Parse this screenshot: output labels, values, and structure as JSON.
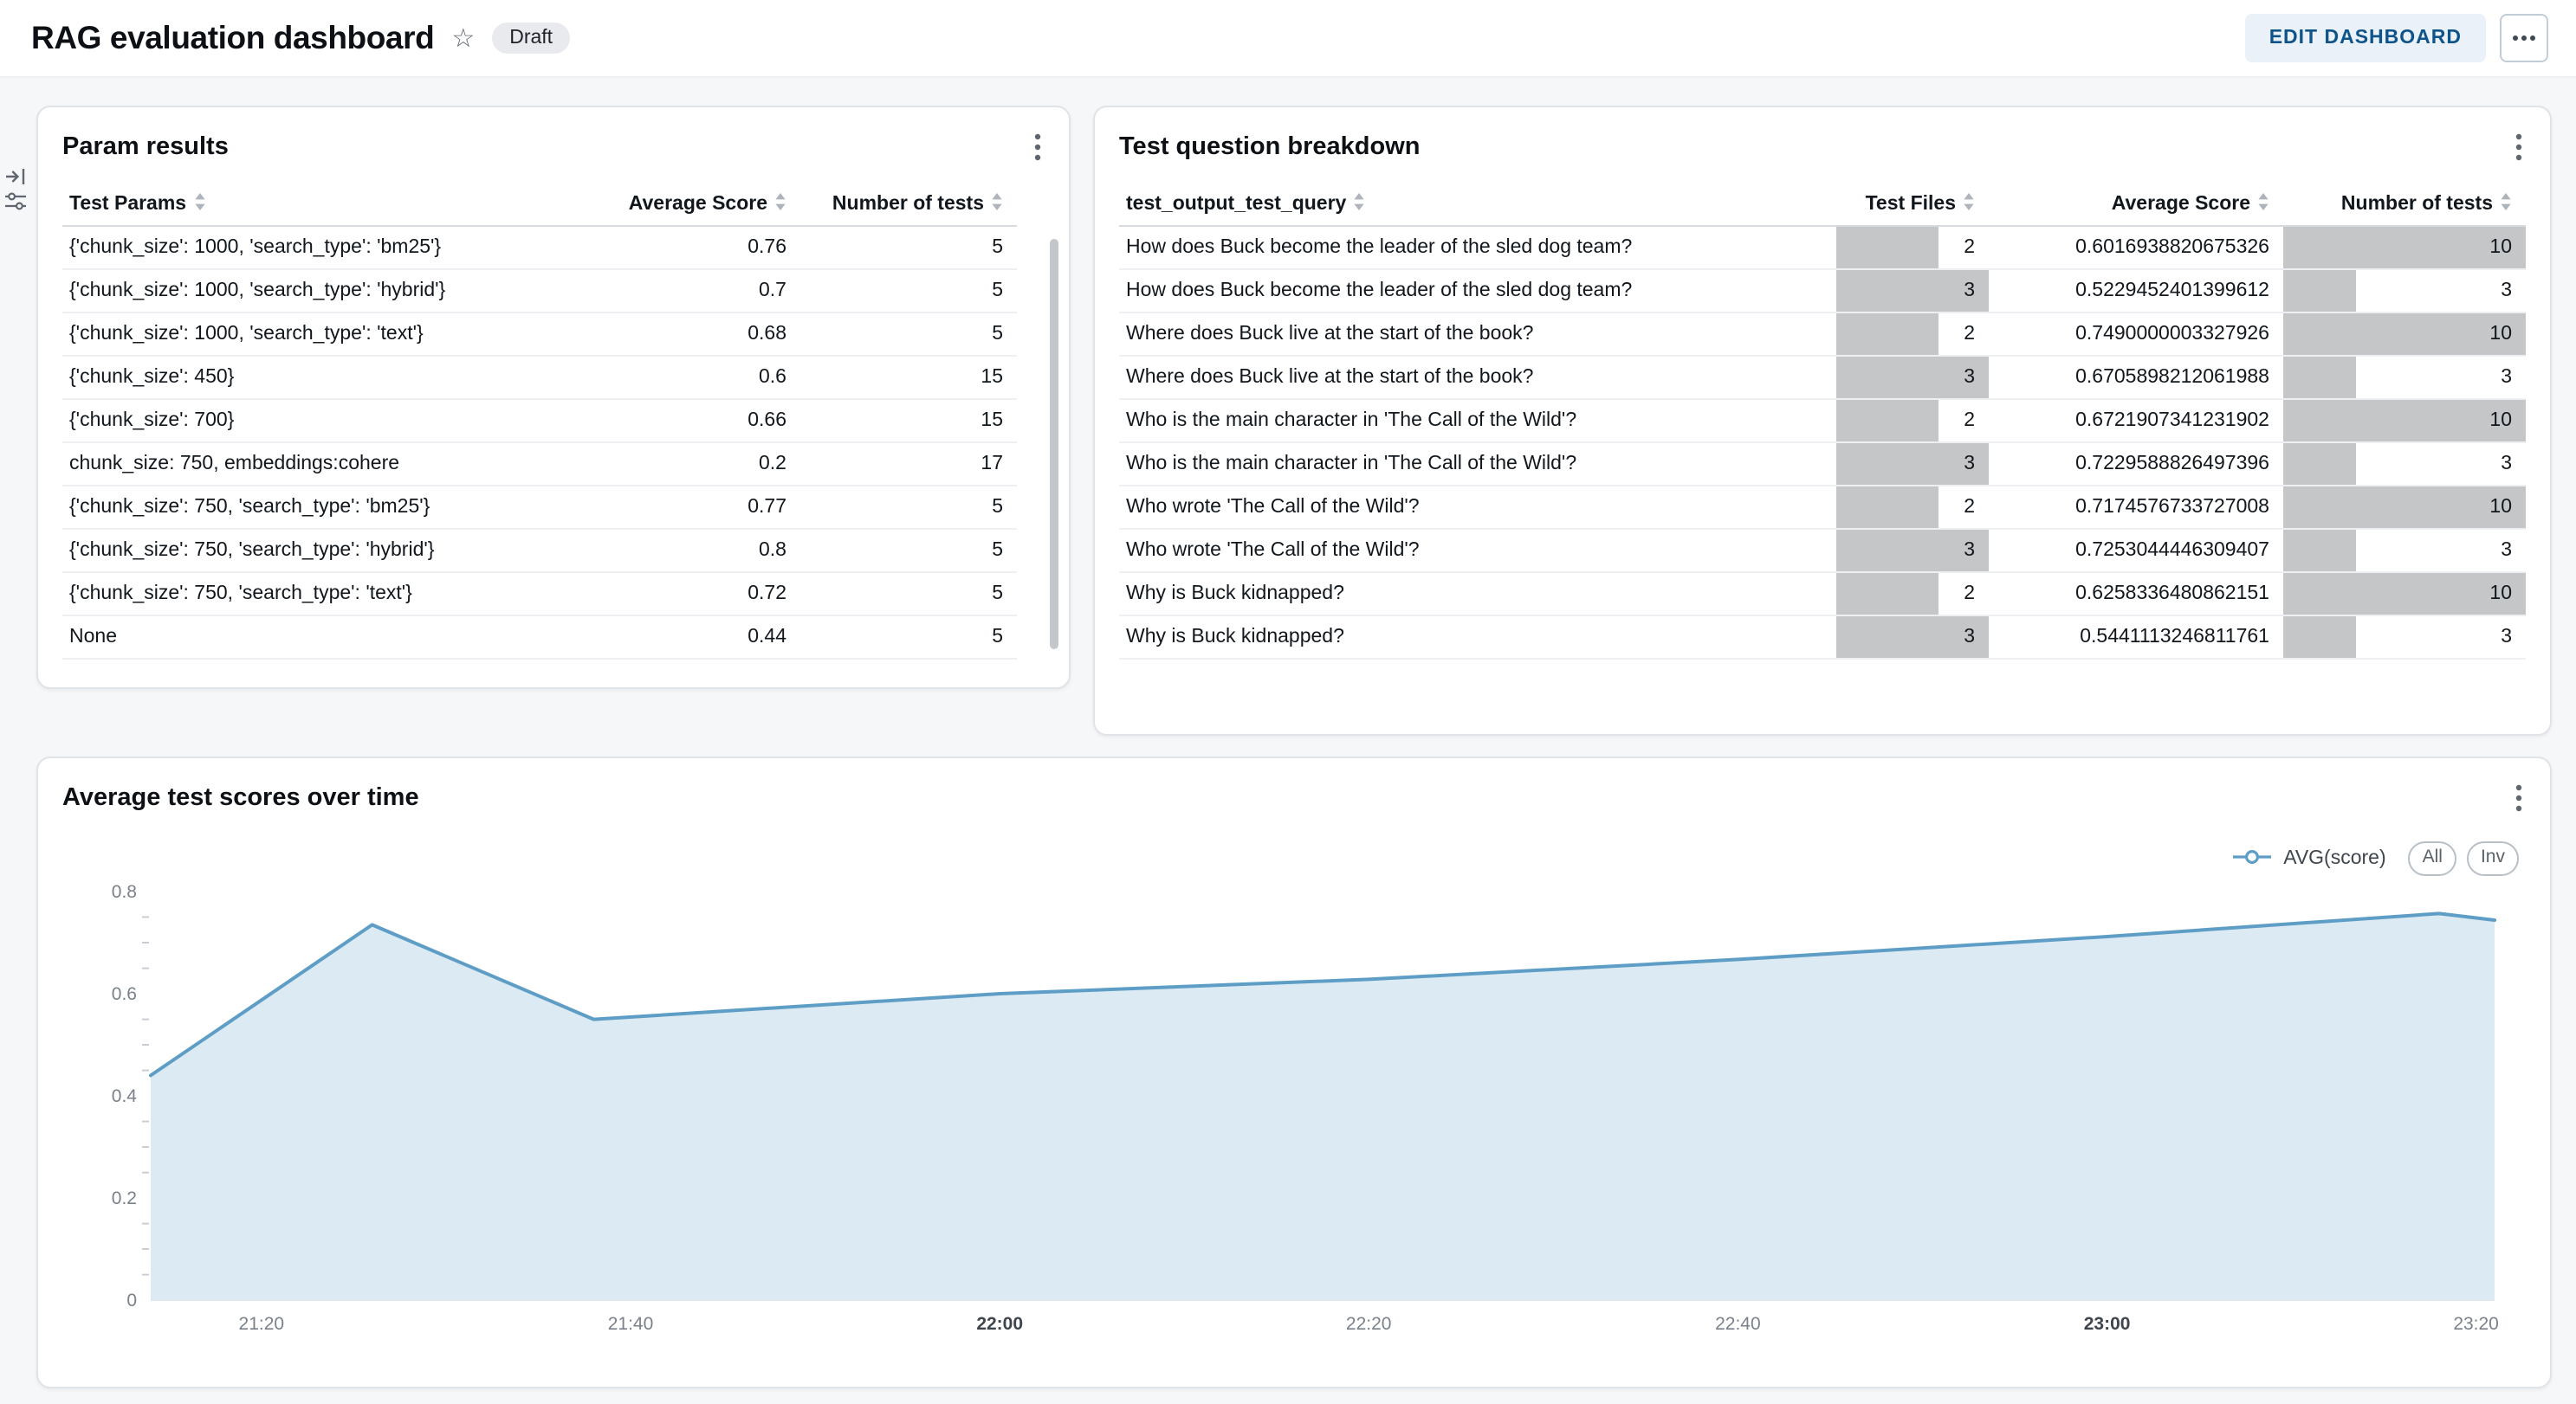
{
  "header": {
    "title": "RAG evaluation dashboard",
    "status_badge": "Draft",
    "edit_button_label": "EDIT DASHBOARD"
  },
  "param_results": {
    "title": "Param results",
    "columns": [
      {
        "key": "params",
        "label": "Test Params",
        "align": "left"
      },
      {
        "key": "avg_score",
        "label": "Average Score",
        "align": "right"
      },
      {
        "key": "num_tests",
        "label": "Number of tests",
        "align": "right"
      }
    ],
    "rows": [
      {
        "params": "{'chunk_size': 1000, 'search_type': 'bm25'}",
        "avg_score": "0.76",
        "num_tests": "5"
      },
      {
        "params": "{'chunk_size': 1000, 'search_type': 'hybrid'}",
        "avg_score": "0.7",
        "num_tests": "5"
      },
      {
        "params": "{'chunk_size': 1000, 'search_type': 'text'}",
        "avg_score": "0.68",
        "num_tests": "5"
      },
      {
        "params": "{'chunk_size': 450}",
        "avg_score": "0.6",
        "num_tests": "15"
      },
      {
        "params": "{'chunk_size': 700}",
        "avg_score": "0.66",
        "num_tests": "15"
      },
      {
        "params": "chunk_size: 750, embeddings:cohere",
        "avg_score": "0.2",
        "num_tests": "17"
      },
      {
        "params": "{'chunk_size': 750, 'search_type': 'bm25'}",
        "avg_score": "0.77",
        "num_tests": "5"
      },
      {
        "params": "{'chunk_size': 750, 'search_type': 'hybrid'}",
        "avg_score": "0.8",
        "num_tests": "5"
      },
      {
        "params": "{'chunk_size': 750, 'search_type': 'text'}",
        "avg_score": "0.72",
        "num_tests": "5"
      },
      {
        "params": "None",
        "avg_score": "0.44",
        "num_tests": "5"
      }
    ]
  },
  "question_breakdown": {
    "title": "Test question breakdown",
    "bar_color": "#C4C6C8",
    "columns": [
      {
        "key": "query",
        "label": "test_output_test_query",
        "align": "left"
      },
      {
        "key": "files",
        "label": "Test Files",
        "align": "right",
        "bar": true
      },
      {
        "key": "score",
        "label": "Average Score",
        "align": "right"
      },
      {
        "key": "tests",
        "label": "Number of tests",
        "align": "right",
        "bar": true
      }
    ],
    "rows": [
      {
        "query": "How does Buck become the leader of the sled dog team?",
        "files": "2",
        "score": "0.6016938820675326",
        "tests": "10"
      },
      {
        "query": "How does Buck become the leader of the sled dog team?",
        "files": "3",
        "score": "0.5229452401399612",
        "tests": "3"
      },
      {
        "query": "Where does Buck live at the start of the book?",
        "files": "2",
        "score": "0.7490000003327926",
        "tests": "10"
      },
      {
        "query": "Where does Buck live at the start of the book?",
        "files": "3",
        "score": "0.6705898212061988",
        "tests": "3"
      },
      {
        "query": "Who is the main character in 'The Call of the Wild'?",
        "files": "2",
        "score": "0.6721907341231902",
        "tests": "10"
      },
      {
        "query": "Who is the main character in 'The Call of the Wild'?",
        "files": "3",
        "score": "0.7229588826497396",
        "tests": "3"
      },
      {
        "query": "Who wrote 'The Call of the Wild'?",
        "files": "2",
        "score": "0.7174576733727008",
        "tests": "10"
      },
      {
        "query": "Who wrote 'The Call of the Wild'?",
        "files": "3",
        "score": "0.7253044446309407",
        "tests": "3"
      },
      {
        "query": "Why is Buck kidnapped?",
        "files": "2",
        "score": "0.6258336480862151",
        "tests": "10"
      },
      {
        "query": "Why is Buck kidnapped?",
        "files": "3",
        "score": "0.5441113246811761",
        "tests": "3"
      }
    ]
  },
  "chart_card": {
    "title": "Average test scores over time",
    "legend_label": "AVG(score)",
    "range_buttons": [
      "All",
      "Inv"
    ]
  },
  "chart_data": {
    "type": "area",
    "title": "Average test scores over time",
    "series": [
      {
        "name": "AVG(score)",
        "points": [
          {
            "time": "21:14",
            "value": 0.44
          },
          {
            "time": "21:26",
            "value": 0.735
          },
          {
            "time": "21:38",
            "value": 0.55
          },
          {
            "time": "22:00",
            "value": 0.6
          },
          {
            "time": "22:20",
            "value": 0.628
          },
          {
            "time": "22:40",
            "value": 0.667
          },
          {
            "time": "23:00",
            "value": 0.712
          },
          {
            "time": "23:18",
            "value": 0.757
          },
          {
            "time": "23:21",
            "value": 0.744
          }
        ]
      }
    ],
    "x_ticks": [
      "21:20",
      "21:40",
      "22:00",
      "22:20",
      "22:40",
      "23:00",
      "23:20"
    ],
    "y_ticks": [
      0,
      0.2,
      0.4,
      0.6,
      0.8
    ],
    "ylim": [
      0,
      0.8
    ],
    "x_range": [
      "21:14",
      "23:21"
    ],
    "line_color": "#5E9EC6",
    "fill_color": "#DCEAF3",
    "legend_position": "top-right",
    "grid": false
  }
}
